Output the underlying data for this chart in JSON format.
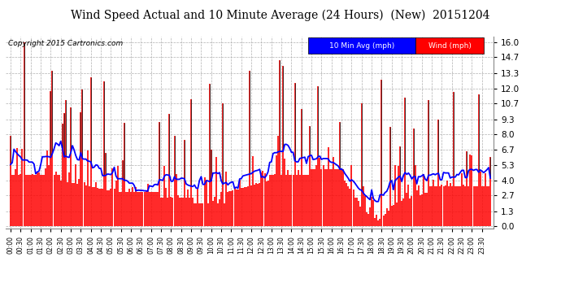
{
  "title": "Wind Speed Actual and 10 Minute Average (24 Hours)  (New)  20151204",
  "copyright": "Copyright 2015 Cartronics.com",
  "legend_10min_label": "10 Min Avg (mph)",
  "legend_wind_label": "Wind (mph)",
  "yticks": [
    0.0,
    1.3,
    2.7,
    4.0,
    5.3,
    6.7,
    8.0,
    9.3,
    10.7,
    12.0,
    13.3,
    14.7,
    16.0
  ],
  "ylim": [
    -0.2,
    16.5
  ],
  "bg_color": "#ffffff",
  "plot_bg_color": "#ffffff",
  "grid_color": "#b0b0b0",
  "bar_color": "#ff0000",
  "line_color": "#0000ff",
  "spike_color": "#222222",
  "title_fontsize": 10.5,
  "copyright_fontsize": 7
}
